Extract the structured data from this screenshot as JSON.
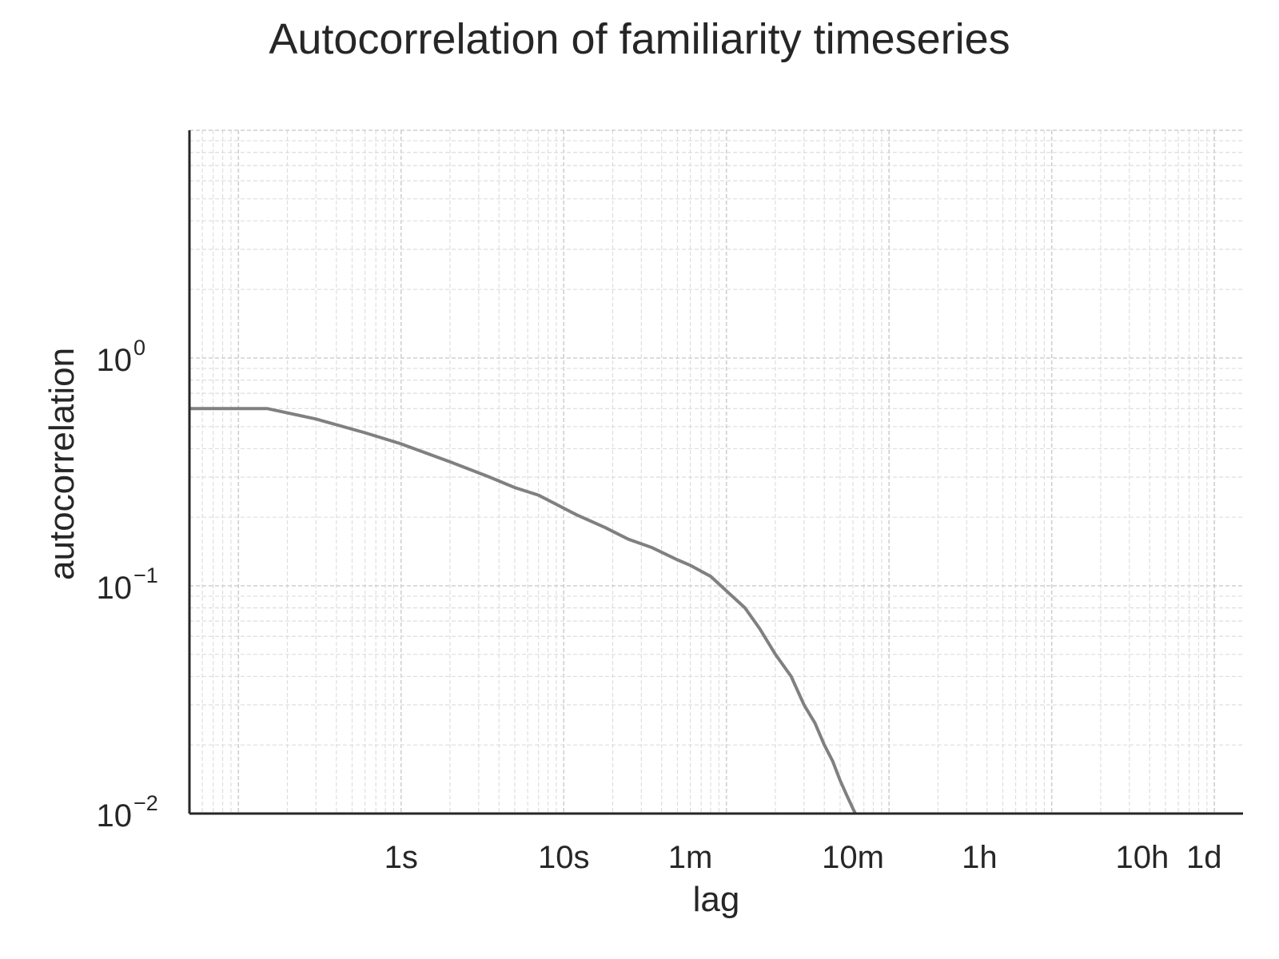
{
  "chart_data": {
    "type": "line",
    "title": "Autocorrelation of familiarity timeseries",
    "xlabel": "lag",
    "ylabel": "autocorrelation",
    "xscale": "log",
    "yscale": "log",
    "xunit": "seconds",
    "xlim": [
      0.05,
      150000
    ],
    "ylim": [
      0.01,
      10
    ],
    "grid": true,
    "legend": "none",
    "line_color": "#808080",
    "x_ticks": [
      {
        "value": 1,
        "label": "1s"
      },
      {
        "value": 10,
        "label": "10s"
      },
      {
        "value": 60,
        "label": "1m"
      },
      {
        "value": 600,
        "label": "10m"
      },
      {
        "value": 3600,
        "label": "1h"
      },
      {
        "value": 36000,
        "label": "10h"
      },
      {
        "value": 86400,
        "label": "1d"
      }
    ],
    "y_ticks": [
      {
        "value": 1,
        "base": "10",
        "exp": "0"
      },
      {
        "value": 0.1,
        "base": "10",
        "exp": "−1"
      },
      {
        "value": 0.01,
        "base": "10",
        "exp": "−2"
      }
    ],
    "series": [
      {
        "x": [
          0.05,
          0.15,
          0.3,
          0.6,
          1,
          2,
          3.5,
          5,
          7,
          12,
          18,
          25,
          35,
          50,
          60,
          80,
          100,
          130,
          160,
          200,
          250,
          300,
          350,
          400,
          450,
          500,
          550,
          600,
          620
        ],
        "y": [
          0.6,
          0.6,
          0.54,
          0.47,
          0.42,
          0.35,
          0.3,
          0.27,
          0.25,
          0.205,
          0.18,
          0.16,
          0.147,
          0.13,
          0.123,
          0.11,
          0.095,
          0.08,
          0.065,
          0.05,
          0.04,
          0.03,
          0.025,
          0.02,
          0.017,
          0.014,
          0.012,
          0.0105,
          0.01
        ]
      }
    ]
  }
}
